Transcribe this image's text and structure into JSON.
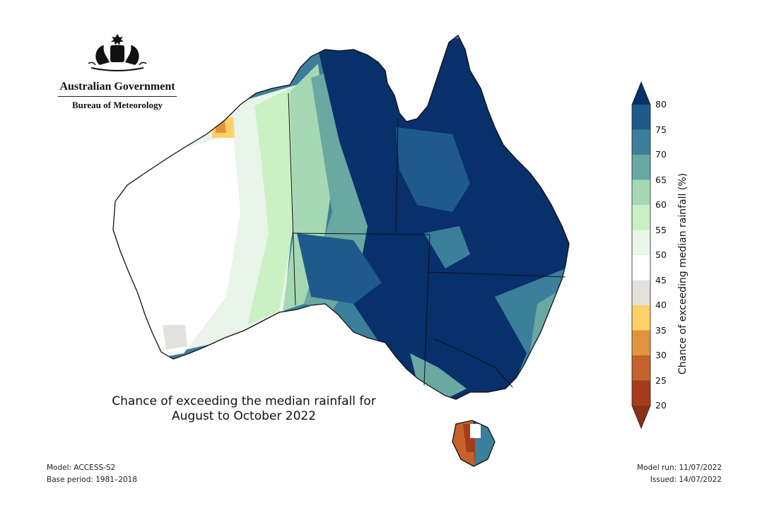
{
  "header": {
    "agency": "Australian Government",
    "bureau": "Bureau of Meteorology"
  },
  "map": {
    "title_line1": "Chance of exceeding the median rainfall for",
    "title_line2": "August to October 2022"
  },
  "footer": {
    "model": "Model: ACCESS-S2",
    "base_period": "Base period: 1981–2018",
    "model_run": "Model run: 11/07/2022",
    "issued": "Issued: 14/07/2022"
  },
  "legend": {
    "label": "Chance of exceeding median rainfall (%)",
    "ticks": [
      "80",
      "75",
      "70",
      "65",
      "60",
      "55",
      "50",
      "45",
      "40",
      "35",
      "30",
      "25",
      "20"
    ],
    "colors": [
      "#08306b",
      "#1f5a8c",
      "#3c7f9a",
      "#6aa8a2",
      "#a6d8b4",
      "#c9f1c4",
      "#e8f5e8",
      "#ffffff",
      "#e4e1dc",
      "#ffd166",
      "#e0953c",
      "#c5612a",
      "#a43c1c",
      "#8a3018"
    ]
  },
  "colors": {
    "ocean": "#ffffff",
    "border": "#111111"
  }
}
